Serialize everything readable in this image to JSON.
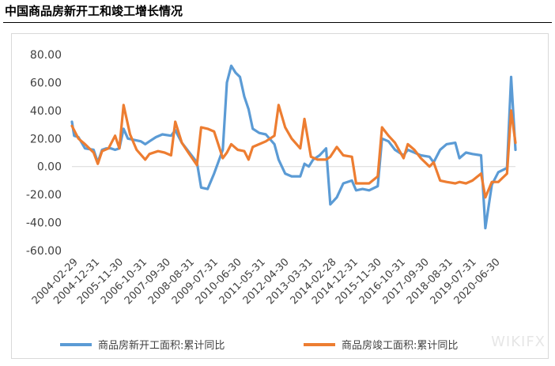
{
  "title": "中国商品房新开工和竣工增长情况",
  "watermark": "WIKIFX",
  "chart_data": {
    "type": "line",
    "ylim": [
      -60,
      80
    ],
    "yticks": [
      "80.00",
      "60.00",
      "40.00",
      "20.00",
      "0.00",
      "-20.00",
      "-40.00",
      "-60.00"
    ],
    "ytick_values": [
      80,
      60,
      40,
      20,
      0,
      -20,
      -40,
      -60
    ],
    "xlim": [
      "2004-02-29",
      "2021-04-30"
    ],
    "xticks": [
      "2004-02-29",
      "2004-12-31",
      "2005-11-30",
      "2006-10-31",
      "2007-09-30",
      "2008-08-31",
      "2009-07-31",
      "2010-06-30",
      "2011-05-31",
      "2012-04-30",
      "2013-03-31",
      "2014-02-28",
      "2014-12-31",
      "2015-11-30",
      "2016-10-31",
      "2017-09-30",
      "2018-08-31",
      "2019-07-31",
      "2020-06-30"
    ],
    "legend_position": "bottom",
    "grid": false,
    "series": [
      {
        "name": "商品房新开工面积:累计同比",
        "color": "#5b9bd5",
        "points": [
          [
            "2004-02-29",
            32
          ],
          [
            "2004-03-31",
            22
          ],
          [
            "2004-05-31",
            21
          ],
          [
            "2004-08-31",
            13
          ],
          [
            "2004-12-31",
            12
          ],
          [
            "2005-02-28",
            3
          ],
          [
            "2005-04-30",
            12
          ],
          [
            "2005-06-30",
            13
          ],
          [
            "2005-08-31",
            13
          ],
          [
            "2005-10-31",
            12
          ],
          [
            "2005-12-31",
            13
          ],
          [
            "2006-02-28",
            27
          ],
          [
            "2006-04-30",
            20
          ],
          [
            "2006-07-31",
            19
          ],
          [
            "2006-10-31",
            18
          ],
          [
            "2006-12-31",
            16
          ],
          [
            "2007-02-28",
            18
          ],
          [
            "2007-05-31",
            21
          ],
          [
            "2007-08-31",
            23
          ],
          [
            "2007-12-31",
            22
          ],
          [
            "2008-02-29",
            26
          ],
          [
            "2008-05-31",
            17
          ],
          [
            "2008-08-31",
            11
          ],
          [
            "2008-12-31",
            3
          ],
          [
            "2009-02-28",
            -15
          ],
          [
            "2009-05-31",
            -16
          ],
          [
            "2009-08-31",
            -5
          ],
          [
            "2009-12-31",
            12
          ],
          [
            "2010-02-28",
            60
          ],
          [
            "2010-04-30",
            72
          ],
          [
            "2010-06-30",
            67
          ],
          [
            "2010-08-31",
            64
          ],
          [
            "2010-10-31",
            50
          ],
          [
            "2010-12-31",
            41
          ],
          [
            "2011-02-28",
            27
          ],
          [
            "2011-05-31",
            24
          ],
          [
            "2011-08-31",
            23
          ],
          [
            "2011-12-31",
            16
          ],
          [
            "2012-02-29",
            5
          ],
          [
            "2012-05-31",
            -5
          ],
          [
            "2012-08-31",
            -7
          ],
          [
            "2012-12-31",
            -7
          ],
          [
            "2013-02-28",
            2
          ],
          [
            "2013-04-30",
            0
          ],
          [
            "2013-06-30",
            5
          ],
          [
            "2013-09-30",
            8
          ],
          [
            "2013-12-31",
            13
          ],
          [
            "2014-02-28",
            -27
          ],
          [
            "2014-05-31",
            -22
          ],
          [
            "2014-08-31",
            -12
          ],
          [
            "2014-12-31",
            -10
          ],
          [
            "2015-02-28",
            -17
          ],
          [
            "2015-05-31",
            -16
          ],
          [
            "2015-08-31",
            -17
          ],
          [
            "2015-12-31",
            -14
          ],
          [
            "2016-02-29",
            20
          ],
          [
            "2016-05-31",
            18
          ],
          [
            "2016-08-31",
            12
          ],
          [
            "2016-12-31",
            8
          ],
          [
            "2017-02-28",
            12
          ],
          [
            "2017-05-31",
            10
          ],
          [
            "2017-08-31",
            8
          ],
          [
            "2017-12-31",
            7
          ],
          [
            "2018-02-28",
            3
          ],
          [
            "2018-05-31",
            12
          ],
          [
            "2018-08-31",
            16
          ],
          [
            "2018-12-31",
            17
          ],
          [
            "2019-02-28",
            6
          ],
          [
            "2019-05-31",
            10
          ],
          [
            "2019-08-31",
            9
          ],
          [
            "2019-12-31",
            8
          ],
          [
            "2020-02-29",
            -44
          ],
          [
            "2020-05-31",
            -13
          ],
          [
            "2020-08-31",
            -4
          ],
          [
            "2020-12-31",
            -1
          ],
          [
            "2021-02-28",
            64
          ],
          [
            "2021-04-30",
            12
          ]
        ]
      },
      {
        "name": "商品房竣工面积:累计同比",
        "color": "#ed7d31",
        "points": [
          [
            "2004-02-29",
            29
          ],
          [
            "2004-05-31",
            20
          ],
          [
            "2004-08-31",
            16
          ],
          [
            "2004-12-31",
            10
          ],
          [
            "2005-02-28",
            2
          ],
          [
            "2005-04-30",
            11
          ],
          [
            "2005-07-31",
            13
          ],
          [
            "2005-10-31",
            22
          ],
          [
            "2005-12-31",
            13
          ],
          [
            "2006-02-28",
            44
          ],
          [
            "2006-05-31",
            23
          ],
          [
            "2006-08-31",
            12
          ],
          [
            "2006-12-31",
            5
          ],
          [
            "2007-02-28",
            9
          ],
          [
            "2007-06-30",
            11
          ],
          [
            "2007-09-30",
            10
          ],
          [
            "2007-12-31",
            8
          ],
          [
            "2008-02-29",
            32
          ],
          [
            "2008-05-31",
            17
          ],
          [
            "2008-08-31",
            10
          ],
          [
            "2008-12-31",
            1
          ],
          [
            "2009-02-28",
            28
          ],
          [
            "2009-05-31",
            27
          ],
          [
            "2009-08-31",
            25
          ],
          [
            "2009-12-31",
            6
          ],
          [
            "2010-02-28",
            10
          ],
          [
            "2010-04-30",
            16
          ],
          [
            "2010-07-31",
            12
          ],
          [
            "2010-10-31",
            11
          ],
          [
            "2010-12-31",
            5
          ],
          [
            "2011-02-28",
            14
          ],
          [
            "2011-05-31",
            16
          ],
          [
            "2011-08-31",
            18
          ],
          [
            "2011-12-31",
            22
          ],
          [
            "2012-02-29",
            44
          ],
          [
            "2012-05-31",
            28
          ],
          [
            "2012-08-31",
            20
          ],
          [
            "2012-12-31",
            13
          ],
          [
            "2013-02-28",
            34
          ],
          [
            "2013-05-31",
            7
          ],
          [
            "2013-08-31",
            5
          ],
          [
            "2013-12-31",
            5
          ],
          [
            "2014-02-28",
            7
          ],
          [
            "2014-05-31",
            14
          ],
          [
            "2014-08-31",
            8
          ],
          [
            "2014-12-31",
            7
          ],
          [
            "2015-02-28",
            -12
          ],
          [
            "2015-05-31",
            -12
          ],
          [
            "2015-08-31",
            -12
          ],
          [
            "2015-12-31",
            -7
          ],
          [
            "2016-02-29",
            28
          ],
          [
            "2016-05-31",
            22
          ],
          [
            "2016-08-31",
            17
          ],
          [
            "2016-12-31",
            6
          ],
          [
            "2017-02-28",
            16
          ],
          [
            "2017-05-31",
            12
          ],
          [
            "2017-08-31",
            6
          ],
          [
            "2017-12-31",
            0
          ],
          [
            "2018-02-28",
            3
          ],
          [
            "2018-05-31",
            -10
          ],
          [
            "2018-08-31",
            -11
          ],
          [
            "2018-12-31",
            -12
          ],
          [
            "2019-02-28",
            -11
          ],
          [
            "2019-05-31",
            -12
          ],
          [
            "2019-08-31",
            -10
          ],
          [
            "2019-12-31",
            -5
          ],
          [
            "2020-02-29",
            -22
          ],
          [
            "2020-05-31",
            -11
          ],
          [
            "2020-08-31",
            -11
          ],
          [
            "2020-12-31",
            -5
          ],
          [
            "2021-02-28",
            40
          ],
          [
            "2021-04-30",
            17
          ]
        ]
      }
    ]
  }
}
